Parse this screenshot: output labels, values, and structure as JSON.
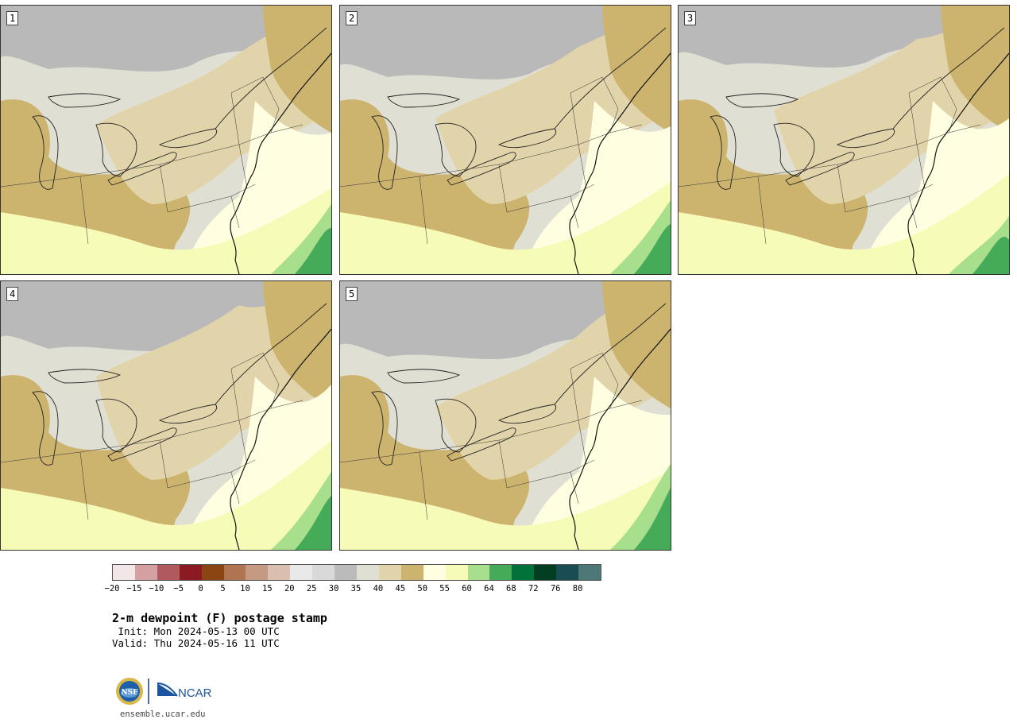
{
  "panels": [
    {
      "label": "1"
    },
    {
      "label": "2"
    },
    {
      "label": "3"
    },
    {
      "label": "4"
    },
    {
      "label": "5"
    }
  ],
  "colorbar": {
    "colors": [
      "#f2e6e6",
      "#d4a0a2",
      "#b05a60",
      "#8c1a22",
      "#8b4513",
      "#ad7550",
      "#c49a82",
      "#dbbfae",
      "#e9e9e9",
      "#d9d9d9",
      "#bbbbbc",
      "#e0dfd3",
      "#e2d4aa",
      "#ccb36e",
      "#fffee1",
      "#f6fbb7",
      "#a8df8d",
      "#45ab59",
      "#017239",
      "#033e22",
      "#1a4c53",
      "#4e7777"
    ],
    "tick_labels": [
      "−20",
      "−15",
      "−10",
      "−5",
      "0",
      "5",
      "10",
      "15",
      "20",
      "25",
      "30",
      "35",
      "40",
      "45",
      "50",
      "55",
      "60",
      "64",
      "68",
      "72",
      "76",
      "80"
    ]
  },
  "title": "2-m dewpoint (F) postage stamp",
  "init": " Init: Mon 2024-05-13 00 UTC",
  "valid": "Valid: Thu 2024-05-16 11 UTC",
  "logo": {
    "left_text": "NSF",
    "right_text": "NCAR"
  },
  "footer": "ensemble.ucar.edu"
}
